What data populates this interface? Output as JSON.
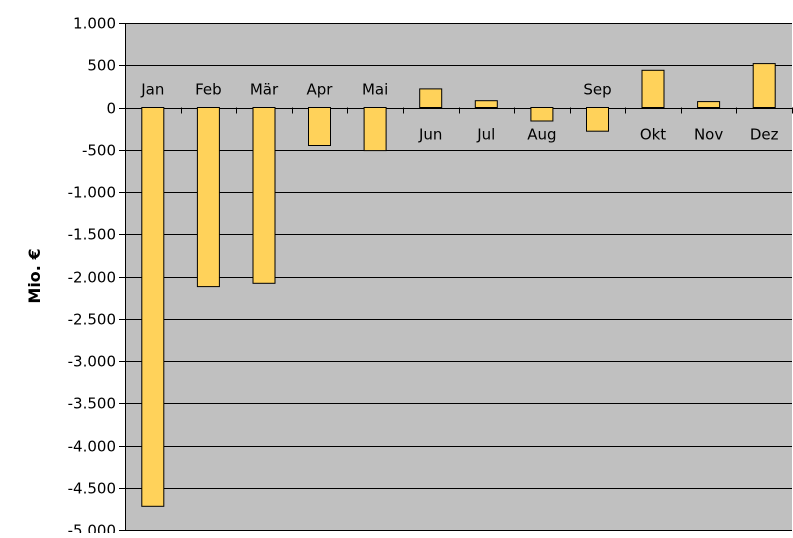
{
  "chart_data": {
    "type": "bar",
    "title": "",
    "xlabel": "",
    "ylabel": "Mio. €",
    "categories": [
      "Jan",
      "Feb",
      "Mär",
      "Apr",
      "Mai",
      "Jun",
      "Jul",
      "Aug",
      "Sep",
      "Okt",
      "Nov",
      "Dez"
    ],
    "values": [
      -4720,
      -2120,
      -2080,
      -450,
      -510,
      220,
      80,
      -160,
      -280,
      440,
      70,
      520
    ],
    "ylim": [
      -5000,
      1000
    ],
    "yticks": [
      1000,
      500,
      0,
      -500,
      -1000,
      -1500,
      -2000,
      -2500,
      -3000,
      -3500,
      -4000,
      -4500,
      -5000
    ],
    "ytick_labels": [
      "1.000",
      "500",
      "0",
      "-500",
      "-1.000",
      "-1.500",
      "-2.000",
      "-2.500",
      "-3.000",
      "-3.500",
      "-4.000",
      "-4.500",
      "-5.000"
    ],
    "category_label_position": [
      "above",
      "above",
      "above",
      "above",
      "above",
      "below",
      "below",
      "below",
      "above",
      "below",
      "below",
      "below"
    ],
    "grid": true,
    "legend": "none",
    "colors": {
      "bar": "#FFD25A",
      "bar_edge": "#000000",
      "plot_background": "#C0C0C0",
      "gridline": "#000000"
    }
  }
}
